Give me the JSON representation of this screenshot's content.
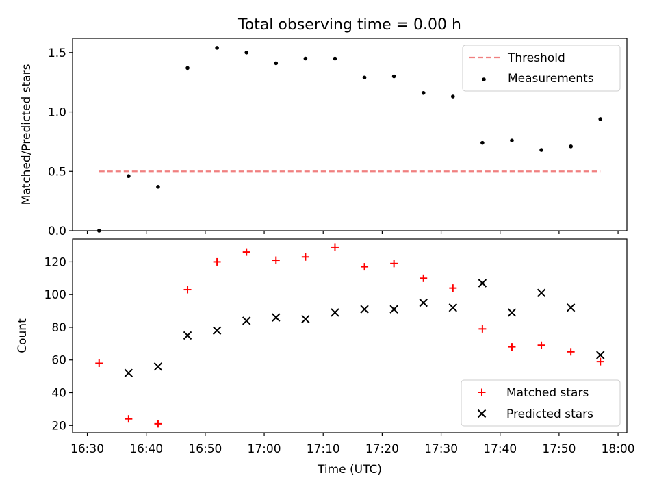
{
  "chart_data": [
    {
      "type": "scatter",
      "title": "Total observing time = 0.00 h",
      "ylabel": "Matched/Predicted stars",
      "xlabel": "",
      "ylim": [
        0,
        1.62
      ],
      "yticks": [
        0.0,
        0.5,
        1.0,
        1.5
      ],
      "ytick_labels": [
        "0.0",
        "0.5",
        "1.0",
        "1.5"
      ],
      "grid": false,
      "legend": "top-right",
      "series": [
        {
          "name": "Measurements",
          "marker": "dot",
          "color": "#000000",
          "x": [
            "16:32",
            "16:37",
            "16:42",
            "16:47",
            "16:52",
            "16:57",
            "17:02",
            "17:07",
            "17:12",
            "17:17",
            "17:22",
            "17:27",
            "17:32",
            "17:37",
            "17:42",
            "17:47",
            "17:52",
            "17:57"
          ],
          "y": [
            0.0,
            0.46,
            0.37,
            1.37,
            1.54,
            1.5,
            1.41,
            1.45,
            1.45,
            1.29,
            1.3,
            1.16,
            1.13,
            0.74,
            0.76,
            0.68,
            0.71,
            0.94
          ]
        }
      ],
      "threshold": {
        "name": "Threshold",
        "color": "#f08080",
        "value": 0.5,
        "x_start": "16:32",
        "x_end": "17:57"
      }
    },
    {
      "type": "scatter",
      "title": "",
      "ylabel": "Count",
      "xlabel": "Time (UTC)",
      "ylim": [
        15.5,
        134
      ],
      "yticks": [
        20,
        40,
        60,
        80,
        100,
        120
      ],
      "ytick_labels": [
        "20",
        "40",
        "60",
        "80",
        "100",
        "120"
      ],
      "xlim": [
        "16:27.5",
        "18:01.5"
      ],
      "xticks": [
        "16:30",
        "16:40",
        "16:50",
        "17:00",
        "17:10",
        "17:20",
        "17:30",
        "17:40",
        "17:50",
        "18:00"
      ],
      "grid": false,
      "legend": "bottom-right",
      "series": [
        {
          "name": "Matched stars",
          "marker": "plus",
          "color": "#ff0000",
          "x": [
            "16:32",
            "16:37",
            "16:42",
            "16:47",
            "16:52",
            "16:57",
            "17:02",
            "17:07",
            "17:12",
            "17:17",
            "17:22",
            "17:27",
            "17:32",
            "17:37",
            "17:42",
            "17:47",
            "17:52",
            "17:57"
          ],
          "y": [
            58,
            24,
            21,
            103,
            120,
            126,
            121,
            123,
            129,
            117,
            119,
            110,
            104,
            79,
            68,
            69,
            65,
            59
          ]
        },
        {
          "name": "Predicted stars",
          "marker": "cross",
          "color": "#000000",
          "x": [
            "16:32",
            "16:37",
            "16:42",
            "16:47",
            "16:52",
            "16:57",
            "17:02",
            "17:07",
            "17:12",
            "17:17",
            "17:22",
            "17:27",
            "17:32",
            "17:37",
            "17:42",
            "17:47",
            "17:52",
            "17:57"
          ],
          "y": [
            null,
            52,
            56,
            75,
            78,
            84,
            86,
            85,
            89,
            91,
            91,
            95,
            92,
            107,
            89,
            101,
            92,
            63
          ]
        }
      ]
    }
  ]
}
